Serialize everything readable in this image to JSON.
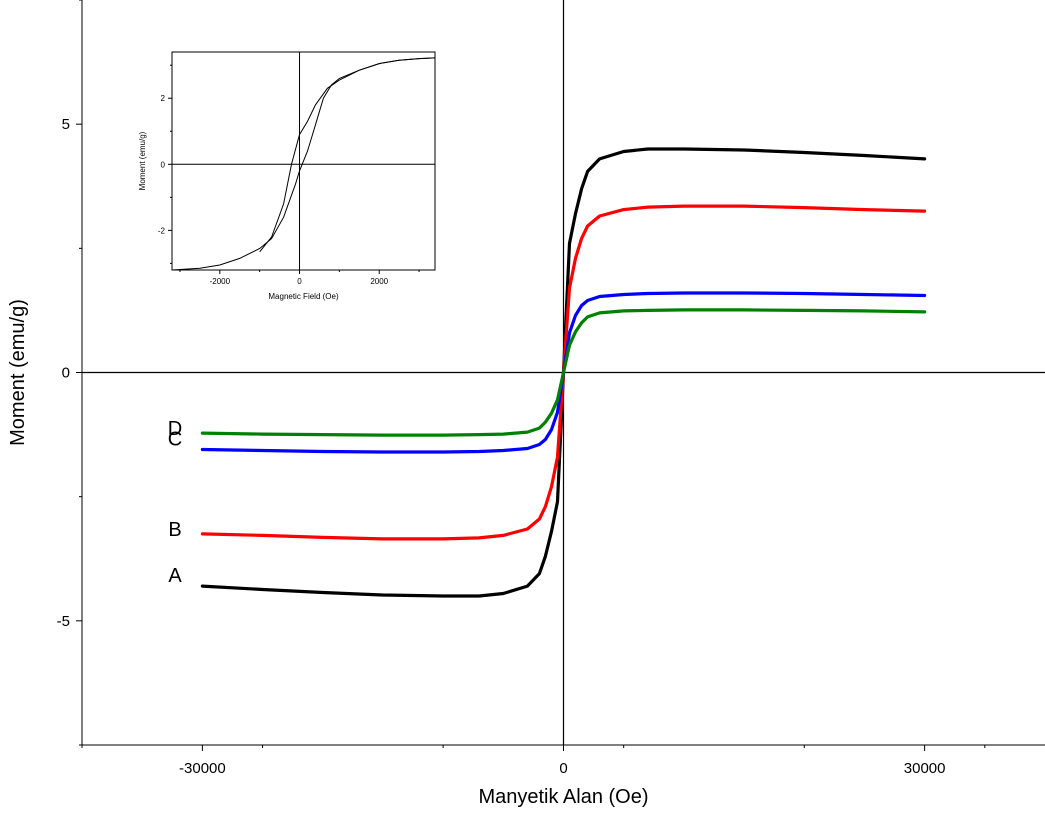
{
  "chart_data": [
    {
      "type": "line",
      "title": "",
      "xlabel": "Manyetik Alan (Oe)",
      "ylabel": "Moment (emu/g)",
      "xlim": [
        -40000,
        40000
      ],
      "ylim": [
        -7.5,
        7.5
      ],
      "xticks": [
        -30000,
        0,
        30000
      ],
      "xtick_labels": [
        "-30000",
        "0",
        "30000"
      ],
      "yticks": [
        -5,
        0,
        5
      ],
      "ytick_labels": [
        "-5",
        "0",
        "5"
      ],
      "grid": false,
      "legend": "none",
      "series": [
        {
          "name": "A",
          "color": "#000000",
          "x": [
            -30000,
            -25000,
            -20000,
            -15000,
            -10000,
            -7000,
            -5000,
            -3000,
            -2000,
            -1500,
            -1000,
            -500,
            0,
            500,
            1000,
            1500,
            2000,
            3000,
            5000,
            7000,
            10000,
            15000,
            20000,
            25000,
            30000
          ],
          "y": [
            -4.3,
            -4.37,
            -4.43,
            -4.48,
            -4.5,
            -4.5,
            -4.45,
            -4.3,
            -4.05,
            -3.7,
            -3.2,
            -2.6,
            0.0,
            2.6,
            3.2,
            3.7,
            4.05,
            4.3,
            4.45,
            4.5,
            4.5,
            4.48,
            4.43,
            4.37,
            4.3
          ]
        },
        {
          "name": "B",
          "color": "#ff0000",
          "x": [
            -30000,
            -25000,
            -20000,
            -15000,
            -10000,
            -7000,
            -5000,
            -3000,
            -2000,
            -1500,
            -1000,
            -500,
            0,
            500,
            1000,
            1500,
            2000,
            3000,
            5000,
            7000,
            10000,
            15000,
            20000,
            25000,
            30000
          ],
          "y": [
            -3.25,
            -3.28,
            -3.32,
            -3.35,
            -3.35,
            -3.33,
            -3.28,
            -3.15,
            -2.95,
            -2.7,
            -2.3,
            -1.7,
            0.0,
            1.7,
            2.3,
            2.7,
            2.95,
            3.15,
            3.28,
            3.33,
            3.35,
            3.35,
            3.32,
            3.28,
            3.25
          ]
        },
        {
          "name": "C",
          "color": "#0000ff",
          "x": [
            -30000,
            -25000,
            -20000,
            -15000,
            -10000,
            -7000,
            -5000,
            -3000,
            -2000,
            -1500,
            -1000,
            -500,
            0,
            500,
            1000,
            1500,
            2000,
            3000,
            5000,
            7000,
            10000,
            15000,
            20000,
            25000,
            30000
          ],
          "y": [
            -1.55,
            -1.57,
            -1.59,
            -1.6,
            -1.6,
            -1.59,
            -1.57,
            -1.53,
            -1.45,
            -1.35,
            -1.15,
            -0.8,
            0.0,
            0.8,
            1.15,
            1.35,
            1.45,
            1.53,
            1.57,
            1.59,
            1.6,
            1.6,
            1.59,
            1.57,
            1.55
          ]
        },
        {
          "name": "D",
          "color": "#008000",
          "x": [
            -30000,
            -25000,
            -20000,
            -15000,
            -10000,
            -7000,
            -5000,
            -3000,
            -2000,
            -1500,
            -1000,
            -500,
            0,
            500,
            1000,
            1500,
            2000,
            3000,
            5000,
            7000,
            10000,
            15000,
            20000,
            25000,
            30000
          ],
          "y": [
            -1.22,
            -1.24,
            -1.25,
            -1.26,
            -1.26,
            -1.25,
            -1.24,
            -1.2,
            -1.12,
            -1.0,
            -0.82,
            -0.55,
            0.0,
            0.55,
            0.82,
            1.0,
            1.12,
            1.2,
            1.24,
            1.25,
            1.26,
            1.26,
            1.25,
            1.24,
            1.22
          ]
        }
      ]
    },
    {
      "type": "line",
      "title": "",
      "xlabel": "Magnetic Field (Oe)",
      "ylabel": "Moment (emu/g)",
      "xlim": [
        -3200,
        3400
      ],
      "ylim": [
        -3.2,
        3.4
      ],
      "xticks": [
        -2000,
        0,
        2000
      ],
      "xtick_labels": [
        "-2000",
        "0",
        "2000"
      ],
      "yticks": [
        -2,
        0,
        2
      ],
      "ytick_labels": [
        "-2",
        "0",
        "2"
      ],
      "grid": false,
      "legend": "none",
      "series": [
        {
          "name": "",
          "color": "#000000",
          "x": [
            -3200,
            -2500,
            -2000,
            -1500,
            -1000,
            -700,
            -400,
            -100,
            0,
            200,
            400,
            600,
            800,
            1000,
            1500,
            2000,
            2500,
            3000,
            3400
          ],
          "y": [
            -3.2,
            -3.15,
            -3.05,
            -2.85,
            -2.55,
            -2.25,
            -1.6,
            -0.6,
            -0.2,
            0.4,
            1.2,
            2.0,
            2.4,
            2.6,
            2.85,
            3.05,
            3.15,
            3.2,
            3.22
          ]
        },
        {
          "name": "",
          "color": "#000000",
          "x": [
            3400,
            3000,
            2500,
            2000,
            1500,
            1000,
            700,
            400,
            200,
            0,
            -200,
            -400,
            -700,
            -1000
          ],
          "y": [
            3.22,
            3.2,
            3.15,
            3.05,
            2.85,
            2.55,
            2.3,
            1.8,
            1.3,
            0.9,
            0.0,
            -1.2,
            -2.2,
            -2.65
          ]
        }
      ]
    }
  ]
}
